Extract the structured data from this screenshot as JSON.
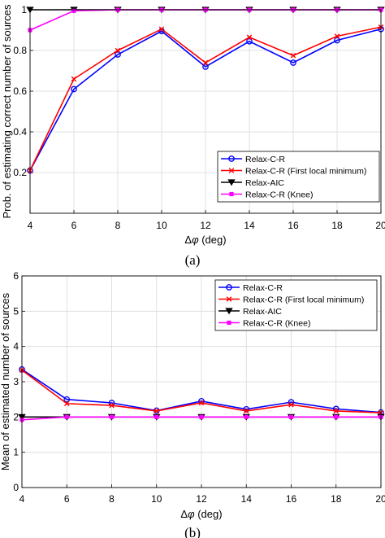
{
  "chart_data": [
    {
      "type": "line",
      "caption": "(a)",
      "xlabel_prefix": "Δ",
      "xlabel_symbol": "φ",
      "xlabel_suffix": " (deg)",
      "ylabel": "Prob. of estimating correct number of sources",
      "x": [
        4,
        6,
        8,
        10,
        12,
        14,
        16,
        18,
        20
      ],
      "xlim": [
        4,
        20
      ],
      "ylim": [
        0,
        1
      ],
      "xticks": [
        "4",
        "6",
        "8",
        "10",
        "12",
        "14",
        "16",
        "18",
        "20"
      ],
      "yticks": [
        {
          "v": 0.2,
          "t": "0.2"
        },
        {
          "v": 0.4,
          "t": "0.4"
        },
        {
          "v": 0.6,
          "t": "0.6"
        },
        {
          "v": 0.8,
          "t": "0.8"
        },
        {
          "v": 1,
          "t": "1"
        }
      ],
      "grid": true,
      "legend_position": "lower-right",
      "series": [
        {
          "name": "Relax-C-R",
          "color": "#0000ff",
          "marker": "circle",
          "values": [
            0.21,
            0.61,
            0.78,
            0.895,
            0.72,
            0.845,
            0.74,
            0.85,
            0.905
          ]
        },
        {
          "name": "Relax-C-R (First local minimum)",
          "color": "#ff0000",
          "marker": "cross",
          "values": [
            0.21,
            0.66,
            0.8,
            0.905,
            0.74,
            0.865,
            0.775,
            0.87,
            0.915
          ]
        },
        {
          "name": "Relax-AIC",
          "color": "#000000",
          "marker": "triangle-down",
          "values": [
            1,
            1,
            1,
            1,
            1,
            1,
            1,
            1,
            1
          ]
        },
        {
          "name": "Relax-C-R (Knee)",
          "color": "#ff00ff",
          "marker": "square",
          "values": [
            0.9,
            0.995,
            1,
            1,
            1,
            1,
            1,
            1,
            1
          ]
        }
      ]
    },
    {
      "type": "line",
      "caption": "(b)",
      "xlabel_prefix": "Δ",
      "xlabel_symbol": "φ",
      "xlabel_suffix": " (deg)",
      "ylabel": "Mean of estimated number of sources",
      "x": [
        4,
        6,
        8,
        10,
        12,
        14,
        16,
        18,
        20
      ],
      "xlim": [
        4,
        20
      ],
      "ylim": [
        0,
        6
      ],
      "xticks": [
        "4",
        "6",
        "8",
        "10",
        "12",
        "14",
        "16",
        "18",
        "20"
      ],
      "yticks": [
        {
          "v": 0,
          "t": "0"
        },
        {
          "v": 1,
          "t": "1"
        },
        {
          "v": 2,
          "t": "2"
        },
        {
          "v": 3,
          "t": "3"
        },
        {
          "v": 4,
          "t": "4"
        },
        {
          "v": 5,
          "t": "5"
        },
        {
          "v": 6,
          "t": "6"
        }
      ],
      "grid": true,
      "legend_position": "upper-right",
      "series": [
        {
          "name": "Relax-C-R",
          "color": "#0000ff",
          "marker": "circle",
          "values": [
            3.35,
            2.5,
            2.4,
            2.18,
            2.45,
            2.22,
            2.42,
            2.23,
            2.13
          ]
        },
        {
          "name": "Relax-C-R (First local minimum)",
          "color": "#ff0000",
          "marker": "cross",
          "values": [
            3.33,
            2.38,
            2.33,
            2.17,
            2.4,
            2.17,
            2.35,
            2.17,
            2.12
          ]
        },
        {
          "name": "Relax-AIC",
          "color": "#000000",
          "marker": "triangle-down",
          "values": [
            2.0,
            2.0,
            2.0,
            2.0,
            2.0,
            2.0,
            2.0,
            2.0,
            2.0
          ]
        },
        {
          "name": "Relax-C-R (Knee)",
          "color": "#ff00ff",
          "marker": "square",
          "values": [
            1.92,
            2.0,
            2.0,
            2.0,
            2.0,
            2.0,
            2.0,
            2.0,
            2.0
          ]
        }
      ]
    }
  ]
}
